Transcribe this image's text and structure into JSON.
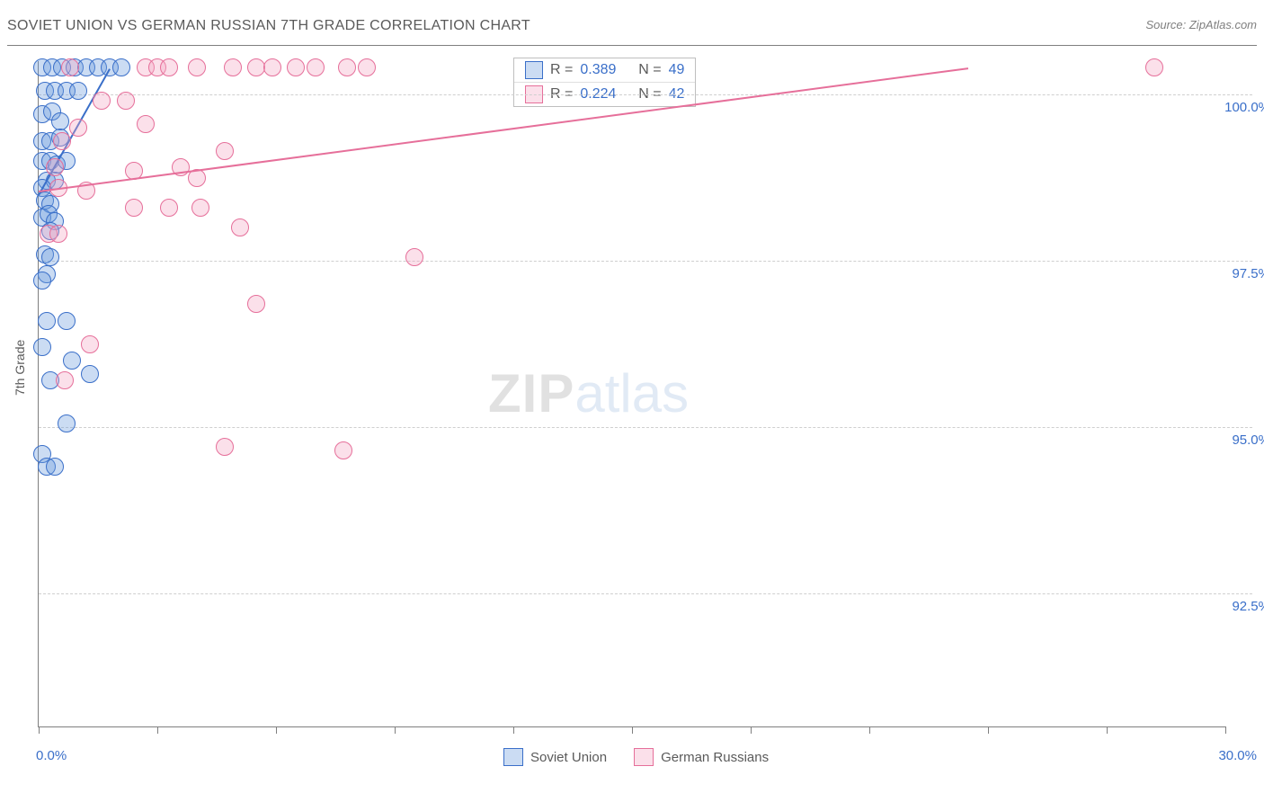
{
  "title": "SOVIET UNION VS GERMAN RUSSIAN 7TH GRADE CORRELATION CHART",
  "source": "Source: ZipAtlas.com",
  "ylabel": "7th Grade",
  "watermark": {
    "zip": "ZIP",
    "atlas": "atlas"
  },
  "colors": {
    "series1_stroke": "#3a6fc9",
    "series1_fill": "rgba(106,155,222,0.35)",
    "series2_stroke": "#e66f9a",
    "series2_fill": "rgba(244,165,196,0.35)",
    "axis": "#7f7f7f",
    "grid": "#cfcfcf",
    "text": "#5a5a5a",
    "ticklabel": "#3a6fc9"
  },
  "chart": {
    "type": "scatter",
    "xlim": [
      0,
      30
    ],
    "ylim": [
      90.5,
      100.5
    ],
    "xticks": [
      0,
      3,
      6,
      9,
      12,
      15,
      18,
      21,
      24,
      27,
      30
    ],
    "xtick_labels": {
      "0": "0.0%",
      "30": "30.0%"
    },
    "yticks": [
      92.5,
      95.0,
      97.5,
      100.0
    ],
    "ytick_labels": [
      "92.5%",
      "95.0%",
      "97.5%",
      "100.0%"
    ],
    "marker_radius": 9,
    "marker_stroke_width": 1.5,
    "trend_width": 2
  },
  "series": [
    {
      "name": "Soviet Union",
      "color_stroke": "#3a6fc9",
      "color_fill": "rgba(106,155,222,0.35)",
      "R": "0.389",
      "N": "49",
      "trend": {
        "x1": 0.0,
        "y1": 98.5,
        "x2": 1.8,
        "y2": 100.4
      },
      "points": [
        [
          0.1,
          100.4
        ],
        [
          0.35,
          100.4
        ],
        [
          0.6,
          100.4
        ],
        [
          0.9,
          100.4
        ],
        [
          1.2,
          100.4
        ],
        [
          1.5,
          100.4
        ],
        [
          1.8,
          100.4
        ],
        [
          2.1,
          100.4
        ],
        [
          0.15,
          100.05
        ],
        [
          0.4,
          100.05
        ],
        [
          0.7,
          100.05
        ],
        [
          1.0,
          100.05
        ],
        [
          0.1,
          99.7
        ],
        [
          0.35,
          99.75
        ],
        [
          0.55,
          99.6
        ],
        [
          0.1,
          99.3
        ],
        [
          0.3,
          99.3
        ],
        [
          0.55,
          99.35
        ],
        [
          0.1,
          99.0
        ],
        [
          0.3,
          99.0
        ],
        [
          0.45,
          98.95
        ],
        [
          0.7,
          99.0
        ],
        [
          0.2,
          98.7
        ],
        [
          0.4,
          98.7
        ],
        [
          0.1,
          98.6
        ],
        [
          0.15,
          98.4
        ],
        [
          0.3,
          98.35
        ],
        [
          0.1,
          98.15
        ],
        [
          0.25,
          98.2
        ],
        [
          0.4,
          98.1
        ],
        [
          0.3,
          97.95
        ],
        [
          0.15,
          97.6
        ],
        [
          0.3,
          97.55
        ],
        [
          0.2,
          97.3
        ],
        [
          0.1,
          97.2
        ],
        [
          0.7,
          96.6
        ],
        [
          0.2,
          96.6
        ],
        [
          0.1,
          96.2
        ],
        [
          0.85,
          96.0
        ],
        [
          0.3,
          95.7
        ],
        [
          1.3,
          95.8
        ],
        [
          0.7,
          95.05
        ],
        [
          0.1,
          94.6
        ],
        [
          0.2,
          94.4
        ],
        [
          0.4,
          94.4
        ]
      ]
    },
    {
      "name": "German Russians",
      "color_stroke": "#e66f9a",
      "color_fill": "rgba(244,165,196,0.35)",
      "R": "0.224",
      "N": "42",
      "trend": {
        "x1": 0.0,
        "y1": 98.55,
        "x2": 23.5,
        "y2": 100.4
      },
      "points": [
        [
          0.8,
          100.4
        ],
        [
          2.7,
          100.4
        ],
        [
          3.0,
          100.4
        ],
        [
          3.3,
          100.4
        ],
        [
          4.0,
          100.4
        ],
        [
          4.9,
          100.4
        ],
        [
          5.5,
          100.4
        ],
        [
          5.9,
          100.4
        ],
        [
          6.5,
          100.4
        ],
        [
          7.0,
          100.4
        ],
        [
          7.8,
          100.4
        ],
        [
          8.3,
          100.4
        ],
        [
          28.2,
          100.4
        ],
        [
          1.6,
          99.9
        ],
        [
          2.2,
          99.9
        ],
        [
          1.0,
          99.5
        ],
        [
          2.7,
          99.55
        ],
        [
          0.6,
          99.3
        ],
        [
          4.7,
          99.15
        ],
        [
          0.4,
          98.9
        ],
        [
          2.4,
          98.85
        ],
        [
          3.6,
          98.9
        ],
        [
          4.0,
          98.75
        ],
        [
          0.5,
          98.6
        ],
        [
          1.2,
          98.55
        ],
        [
          2.4,
          98.3
        ],
        [
          3.3,
          98.3
        ],
        [
          4.1,
          98.3
        ],
        [
          5.1,
          98.0
        ],
        [
          0.25,
          97.9
        ],
        [
          0.5,
          97.9
        ],
        [
          9.5,
          97.55
        ],
        [
          5.5,
          96.85
        ],
        [
          1.3,
          96.25
        ],
        [
          0.65,
          95.7
        ],
        [
          4.7,
          94.7
        ],
        [
          7.7,
          94.65
        ]
      ]
    }
  ],
  "stats_labels": {
    "R": "R =",
    "N": "N ="
  },
  "legend": {
    "series1": "Soviet Union",
    "series2": "German Russians"
  }
}
